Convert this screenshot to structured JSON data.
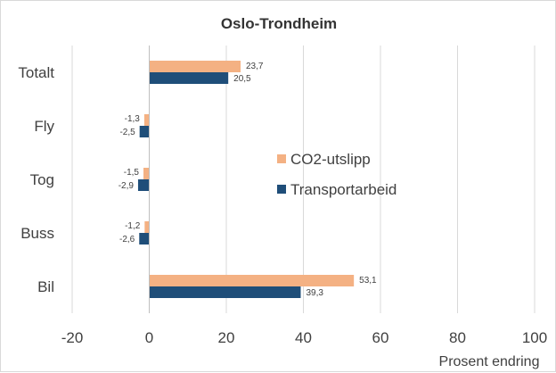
{
  "chart_data": {
    "type": "bar",
    "orientation": "horizontal",
    "title": "Oslo-Trondheim",
    "xlabel": "Prosent   endring",
    "ylabel": "",
    "categories": [
      "Totalt",
      "Fly",
      "Tog",
      "Buss",
      "Bil"
    ],
    "series": [
      {
        "name": "CO2-utslipp",
        "color": "#f4b183",
        "values": [
          23.7,
          -1.3,
          -1.5,
          -1.2,
          53.1
        ],
        "labels": [
          "23,7",
          "-1,3",
          "-1,5",
          "-1,2",
          "53,1"
        ]
      },
      {
        "name": "Transportarbeid",
        "color": "#1f4e79",
        "values": [
          20.5,
          -2.5,
          -2.9,
          -2.6,
          39.3
        ],
        "labels": [
          "20,5",
          "-2,5",
          "-2,9",
          "-2,6",
          "39,3"
        ]
      }
    ],
    "xlim": [
      -20,
      100
    ],
    "xticks": [
      "-20",
      "0",
      "20",
      "40",
      "60",
      "80",
      "100"
    ],
    "grid": "vertical",
    "legend_position": "right-center"
  }
}
